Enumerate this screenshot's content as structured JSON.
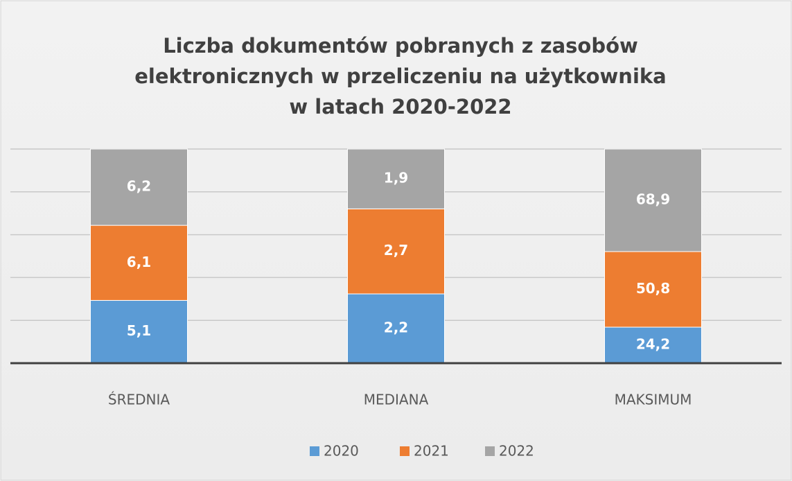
{
  "chart_data": {
    "type": "bar",
    "stacking": "percent",
    "title": [
      "Liczba dokumentów pobranych z zasobów",
      "elektronicznych w przeliczeniu na użytkownika",
      "w latach 2020-2022"
    ],
    "categories": [
      "ŚREDNIA",
      "MEDIANA",
      "MAKSIMUM"
    ],
    "series": [
      {
        "name": "2020",
        "color": "#5b9bd5",
        "values": [
          5.1,
          2.2,
          24.2
        ],
        "value_labels": [
          "5,1",
          "2,2",
          "24,2"
        ]
      },
      {
        "name": "2021",
        "color": "#ed7d31",
        "values": [
          6.1,
          2.7,
          50.8
        ],
        "value_labels": [
          "6,1",
          "2,7",
          "50,8"
        ]
      },
      {
        "name": "2022",
        "color": "#a5a5a5",
        "values": [
          6.2,
          1.9,
          68.9
        ],
        "value_labels": [
          "6,2",
          "1,9",
          "68,9"
        ]
      }
    ],
    "ylim": [
      0,
      100
    ],
    "yticks": [
      0,
      20,
      40,
      60,
      80,
      100
    ],
    "grid": true,
    "legend": "bottom"
  }
}
